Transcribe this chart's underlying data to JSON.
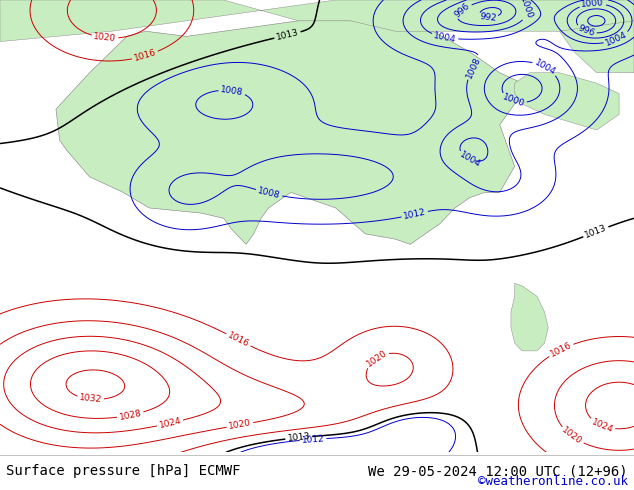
{
  "title_left": "Surface pressure [hPa] ECMWF",
  "title_right": "We 29-05-2024 12:00 UTC (12+96)",
  "copyright": "©weatheronline.co.uk",
  "land_color": "#c8edc0",
  "ocean_color": "#d8e4ee",
  "contour_blue": "#0000cc",
  "contour_red": "#cc0000",
  "contour_black": "#000000",
  "footer_bg": "#ffffff",
  "footer_text_color": "#000000",
  "copyright_color": "#0000cc",
  "font_size_footer": 10,
  "font_size_copyright": 9
}
